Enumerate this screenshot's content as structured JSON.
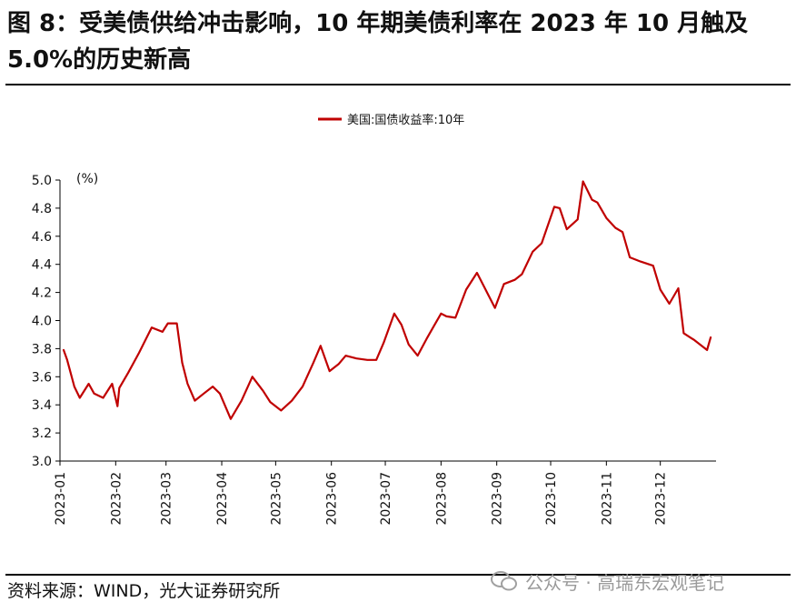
{
  "header": {
    "title": "图 8：受美债供给冲击影响，10 年期美债利率在 2023 年 10 月触及 5.0%的历史新高"
  },
  "footer": {
    "source": "资料来源：WIND，光大证券研究所",
    "watermark": "公众号 · 高瑞东宏观笔记"
  },
  "colors": {
    "series": "#c00000",
    "axis": "#000000",
    "text": "#111111"
  },
  "chart_data": {
    "type": "line",
    "title": "",
    "xlabel": "",
    "ylabel": "(%)",
    "ylim": [
      3.0,
      5.0
    ],
    "yticks": [
      "3.0",
      "3.2",
      "3.4",
      "3.6",
      "3.8",
      "4.0",
      "4.2",
      "4.4",
      "4.6",
      "4.8",
      "5.0"
    ],
    "xticks": [
      "2023-01",
      "2023-02",
      "2023-03",
      "2023-04",
      "2023-05",
      "2023-06",
      "2023-07",
      "2023-08",
      "2023-09",
      "2023-10",
      "2023-11",
      "2023-12"
    ],
    "grid": false,
    "legend": "top-center",
    "series": [
      {
        "name": "美国:国债收益率:10年",
        "color": "#c00000",
        "x": [
          "2023-01-03",
          "2023-01-05",
          "2023-01-09",
          "2023-01-12",
          "2023-01-17",
          "2023-01-20",
          "2023-01-25",
          "2023-01-30",
          "2023-02-02",
          "2023-02-03",
          "2023-02-08",
          "2023-02-14",
          "2023-02-21",
          "2023-02-27",
          "2023-03-02",
          "2023-03-07",
          "2023-03-10",
          "2023-03-13",
          "2023-03-17",
          "2023-03-22",
          "2023-03-27",
          "2023-03-31",
          "2023-04-06",
          "2023-04-12",
          "2023-04-18",
          "2023-04-24",
          "2023-04-28",
          "2023-05-04",
          "2023-05-10",
          "2023-05-16",
          "2023-05-22",
          "2023-05-26",
          "2023-05-31",
          "2023-06-05",
          "2023-06-09",
          "2023-06-15",
          "2023-06-21",
          "2023-06-26",
          "2023-06-30",
          "2023-07-06",
          "2023-07-10",
          "2023-07-14",
          "2023-07-19",
          "2023-07-24",
          "2023-07-28",
          "2023-08-01",
          "2023-08-04",
          "2023-08-09",
          "2023-08-15",
          "2023-08-21",
          "2023-08-25",
          "2023-08-31",
          "2023-09-05",
          "2023-09-11",
          "2023-09-15",
          "2023-09-21",
          "2023-09-26",
          "2023-10-03",
          "2023-10-06",
          "2023-10-10",
          "2023-10-16",
          "2023-10-19",
          "2023-10-24",
          "2023-10-27",
          "2023-11-01",
          "2023-11-06",
          "2023-11-10",
          "2023-11-14",
          "2023-11-20",
          "2023-11-27",
          "2023-12-01",
          "2023-12-06",
          "2023-12-11",
          "2023-12-14",
          "2023-12-20",
          "2023-12-27",
          "2023-12-29"
        ],
        "values": [
          3.79,
          3.72,
          3.53,
          3.45,
          3.55,
          3.48,
          3.45,
          3.55,
          3.39,
          3.52,
          3.63,
          3.77,
          3.95,
          3.92,
          3.98,
          3.98,
          3.7,
          3.55,
          3.43,
          3.48,
          3.53,
          3.48,
          3.3,
          3.43,
          3.6,
          3.5,
          3.42,
          3.36,
          3.43,
          3.53,
          3.7,
          3.82,
          3.64,
          3.69,
          3.75,
          3.73,
          3.72,
          3.72,
          3.84,
          4.05,
          3.97,
          3.83,
          3.75,
          3.87,
          3.96,
          4.05,
          4.03,
          4.02,
          4.22,
          4.34,
          4.24,
          4.09,
          4.26,
          4.29,
          4.33,
          4.49,
          4.55,
          4.81,
          4.8,
          4.65,
          4.72,
          4.99,
          4.86,
          4.84,
          4.73,
          4.66,
          4.63,
          4.45,
          4.42,
          4.39,
          4.22,
          4.12,
          4.23,
          3.91,
          3.86,
          3.79,
          3.88
        ]
      }
    ]
  }
}
